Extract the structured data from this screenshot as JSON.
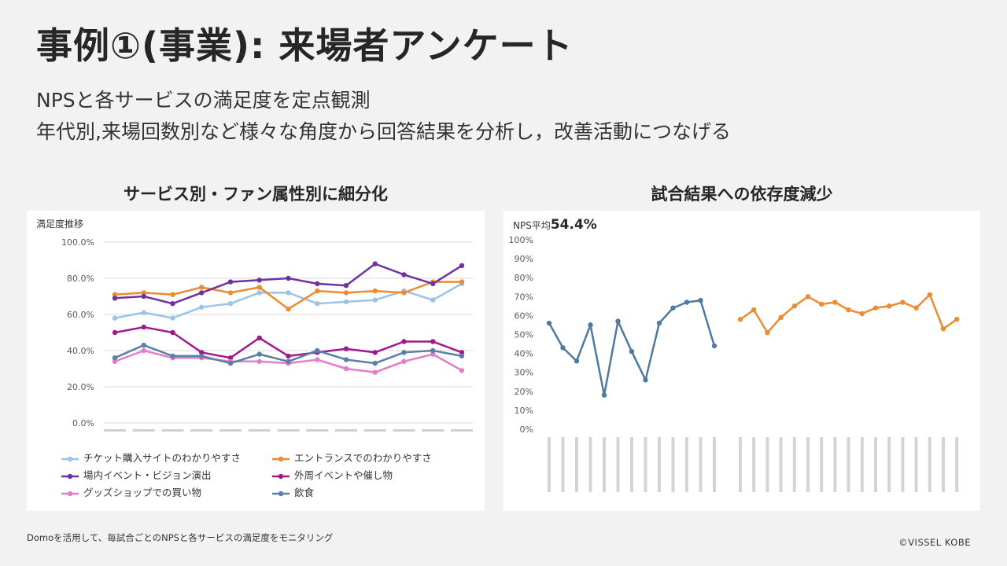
{
  "title": "事例①(事業): 来場者アンケート",
  "subtitle1": "NPSと各サービスの満足度を定点観測",
  "subtitle2": "年代別,来場回数別など様々な角度から回答結果を分析し，改善活動につなげる",
  "footnote": "Domoを活用して、毎試合ごとのNPSと各サービスの満足度をモニタリング",
  "copyright": "©VISSEL KOBE",
  "chart_data": [
    {
      "type": "line",
      "panel_title": "サービス別・ファン属性別に細分化",
      "title": "満足度推移",
      "ylim": [
        0,
        100
      ],
      "yticks": [
        "0.0%",
        "20.0%",
        "40.0%",
        "60.0%",
        "80.0%",
        "100.0%"
      ],
      "series": [
        {
          "name": "チケット購入サイトのわかりやすさ",
          "color": "#9dc3e6",
          "values": [
            58,
            61,
            58,
            64,
            66,
            72,
            72,
            66,
            67,
            68,
            73,
            68,
            77
          ]
        },
        {
          "name": "エントランスでのわかりやすさ",
          "color": "#ed8a32",
          "values": [
            71,
            72,
            71,
            75,
            72,
            75,
            63,
            73,
            72,
            73,
            72,
            78,
            78
          ]
        },
        {
          "name": "場内イベント・ビジョン演出",
          "color": "#7030a0",
          "values": [
            69,
            70,
            66,
            72,
            78,
            79,
            80,
            77,
            76,
            88,
            82,
            77,
            87
          ]
        },
        {
          "name": "外周イベントや催し物",
          "color": "#a0198f",
          "values": [
            50,
            53,
            50,
            39,
            36,
            47,
            37,
            39,
            41,
            39,
            45,
            45,
            39
          ]
        },
        {
          "name": "グッズショップでの買い物",
          "color": "#e47dc8",
          "values": [
            34,
            40,
            36,
            36,
            34,
            34,
            33,
            35,
            30,
            28,
            34,
            38,
            29
          ]
        },
        {
          "name": "飲食",
          "color": "#5b7fa6",
          "values": [
            36,
            43,
            37,
            37,
            33,
            38,
            34,
            40,
            35,
            33,
            39,
            40,
            37
          ]
        }
      ]
    },
    {
      "type": "line",
      "panel_title": "試合結果への依存度減少",
      "nps_label": "NPS平均",
      "nps_value": "54.4%",
      "ylim": [
        0,
        100
      ],
      "yticks": [
        "0%",
        "10%",
        "20%",
        "30%",
        "40%",
        "50%",
        "60%",
        "70%",
        "80%",
        "90%",
        "100%"
      ],
      "series": [
        {
          "color": "#4e7aa0",
          "values": [
            56,
            43,
            36,
            55,
            18,
            57,
            41,
            26,
            56,
            64,
            67,
            68,
            44
          ]
        },
        {
          "color": "#ed8a32",
          "values": [
            58,
            63,
            51,
            59,
            65,
            70,
            66,
            67,
            63,
            61,
            64,
            65,
            67,
            64,
            71,
            53,
            58
          ]
        }
      ]
    }
  ]
}
